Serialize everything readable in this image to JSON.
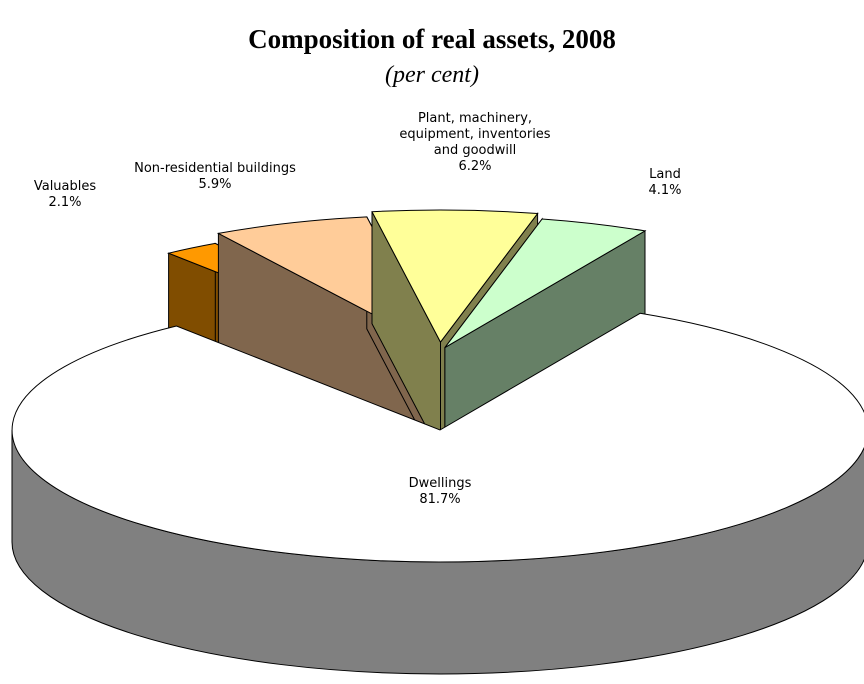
{
  "chart_data": {
    "type": "pie3d",
    "title": "Composition of real assets, 2008",
    "subtitle": "(per cent)",
    "categories": [
      "Valuables",
      "Non-residential buildings",
      "Plant, machinery,\nequipment, inventories\nand goodwill",
      "Land",
      "Dwellings"
    ],
    "values": [
      2.1,
      5.9,
      6.2,
      4.1,
      81.7
    ],
    "value_labels": [
      "2.1%",
      "5.9%",
      "6.2%",
      "4.1%",
      "81.7%"
    ],
    "colors": [
      "#ff9900",
      "#ffcc99",
      "#ffff99",
      "#ccffcc",
      "#ffffff"
    ]
  }
}
